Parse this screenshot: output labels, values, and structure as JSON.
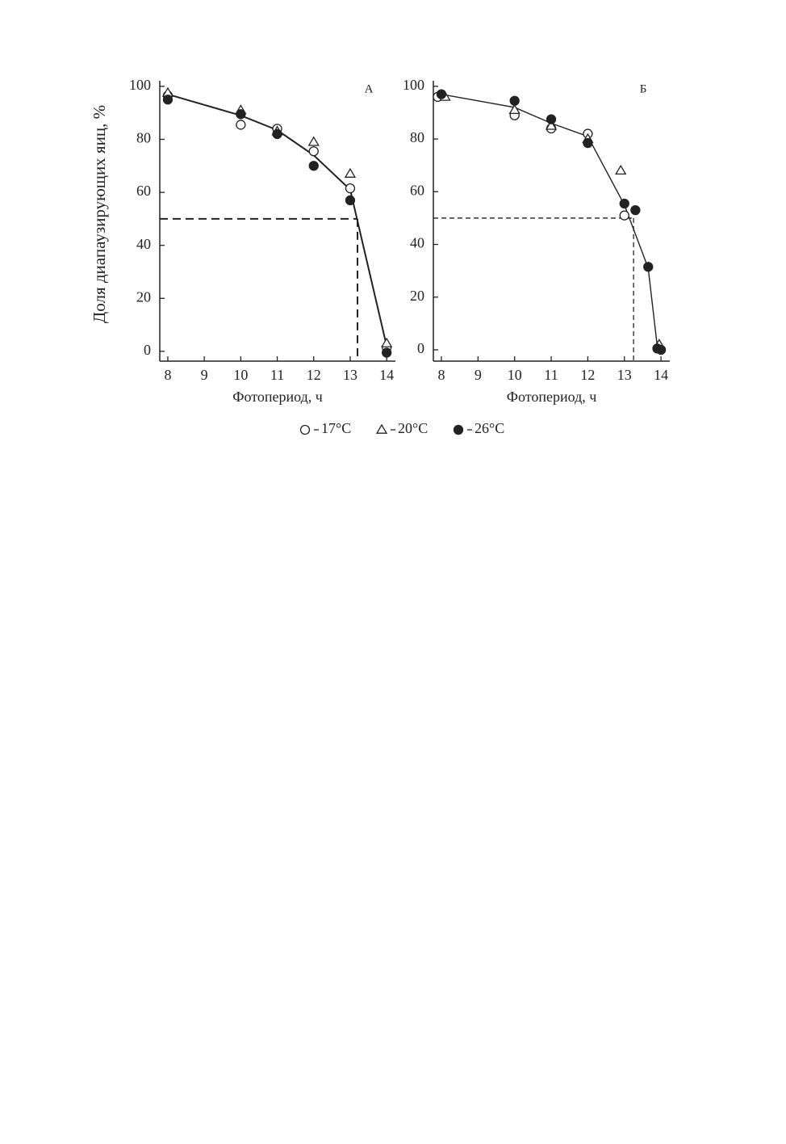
{
  "chart_data": [
    {
      "type": "scatter",
      "title": "А",
      "xlabel": "Фотопериод, ч",
      "ylabel": "Доля диапаузирующих яиц, %",
      "xlim": [
        7.78,
        14.24
      ],
      "ylim": [
        -3.7,
        102.1
      ],
      "xticks": [
        8,
        9,
        10,
        11,
        12,
        13,
        14
      ],
      "yticks": [
        0,
        20,
        40,
        60,
        80,
        100
      ],
      "series": [
        {
          "marker": "open-circle",
          "color": "#222222",
          "x": [
            8,
            10,
            11,
            12,
            13,
            14
          ],
          "values": [
            96.5,
            85.5,
            84,
            75.5,
            61.5,
            1.5
          ]
        },
        {
          "marker": "open-triangle",
          "color": "#222222",
          "x": [
            8,
            10,
            11,
            12,
            13,
            14
          ],
          "values": [
            97.5,
            91,
            83,
            79,
            67,
            3
          ]
        },
        {
          "marker": "filled-circle",
          "color": "#222222",
          "x": [
            8,
            10,
            11,
            12,
            13,
            14
          ],
          "values": [
            95,
            89.5,
            82,
            70,
            57,
            -0.5
          ]
        }
      ],
      "fit": {
        "x": [
          8,
          10,
          11,
          12,
          13,
          14
        ],
        "values": [
          97,
          89,
          83.5,
          74,
          61,
          2
        ]
      },
      "reference": {
        "x": 13.2,
        "y": 50
      }
    },
    {
      "type": "scatter",
      "title": "Б",
      "xlabel": "Фотопериод, ч",
      "xlim": [
        7.78,
        14.24
      ],
      "ylim": [
        -4.3,
        102.1
      ],
      "xticks": [
        8,
        9,
        10,
        11,
        12,
        13,
        14
      ],
      "yticks": [
        0,
        20,
        40,
        60,
        80,
        100
      ],
      "series": [
        {
          "marker": "open-circle",
          "color": "#222222",
          "x": [
            7.9,
            10,
            11,
            12,
            13,
            13.9
          ],
          "values": [
            96,
            89,
            84,
            82,
            51,
            0.5
          ]
        },
        {
          "marker": "open-triangle",
          "color": "#222222",
          "x": [
            8.1,
            10,
            11,
            12,
            12.9,
            13.95
          ],
          "values": [
            96,
            91,
            85,
            80,
            68,
            2
          ]
        },
        {
          "marker": "filled-circle",
          "color": "#222222",
          "x": [
            8,
            10,
            11,
            12,
            13,
            13.3,
            13.65,
            13.9,
            14
          ],
          "values": [
            97,
            94.5,
            87.5,
            78.5,
            55.5,
            53,
            31.5,
            0.5,
            0
          ]
        }
      ],
      "fit": {
        "x": [
          8,
          10,
          11,
          12,
          13,
          13.65,
          13.9,
          14
        ],
        "values": [
          97,
          92,
          86,
          81,
          55,
          31,
          1,
          0
        ]
      },
      "reference": {
        "x": 13.25,
        "y": 50
      }
    }
  ],
  "legend": [
    {
      "name": "17°C",
      "marker": "open-circle"
    },
    {
      "name": "20°C",
      "marker": "open-triangle"
    },
    {
      "name": "26°C",
      "marker": "filled-circle"
    }
  ]
}
